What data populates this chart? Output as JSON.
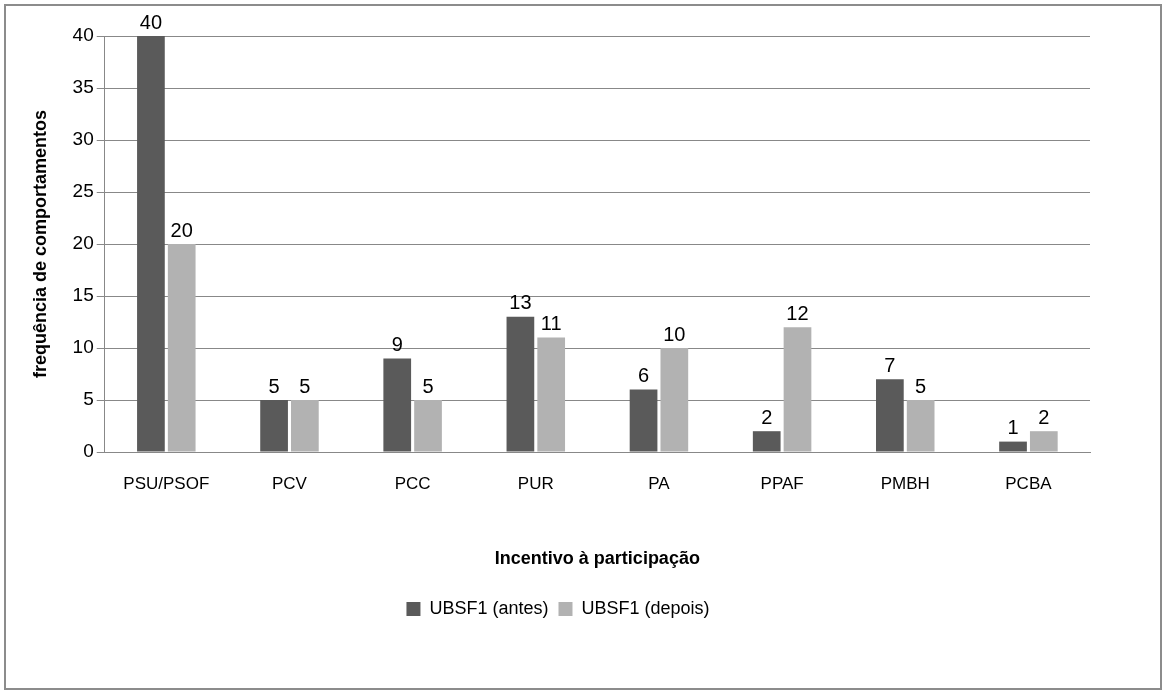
{
  "chart_data": {
    "type": "bar",
    "xlabel": "Incentivo à participação",
    "ylabel": "frequência de comportamentos",
    "categories": [
      "PSU/PSOF",
      "PCV",
      "PCC",
      "PUR",
      "PA",
      "PPAF",
      "PMBH",
      "PCBA"
    ],
    "series": [
      {
        "name": "UBSF1 (antes)",
        "color": "#5a5a5a",
        "values": [
          40,
          5,
          9,
          13,
          6,
          2,
          7,
          1
        ]
      },
      {
        "name": "UBSF1 (depois)",
        "color": "#b2b2b2",
        "values": [
          20,
          5,
          5,
          11,
          10,
          12,
          5,
          2
        ]
      }
    ],
    "ylim": [
      0,
      40
    ],
    "yticks": [
      0,
      5,
      10,
      15,
      20,
      25,
      30,
      35,
      40
    ],
    "grid": "y",
    "legend": "bottom",
    "data_labels": true
  }
}
